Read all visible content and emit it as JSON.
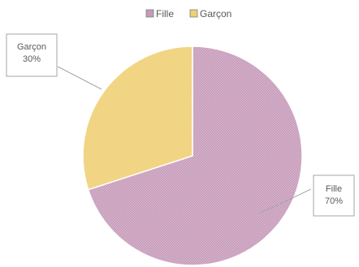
{
  "chart_data": {
    "type": "pie",
    "title": "",
    "legend_position": "top",
    "categories": [
      "Fille",
      "Garçon"
    ],
    "values": [
      70,
      30
    ],
    "data_labels": [
      "70%",
      "30%"
    ],
    "colors": [
      "#c69ab9",
      "#efcf72"
    ]
  }
}
